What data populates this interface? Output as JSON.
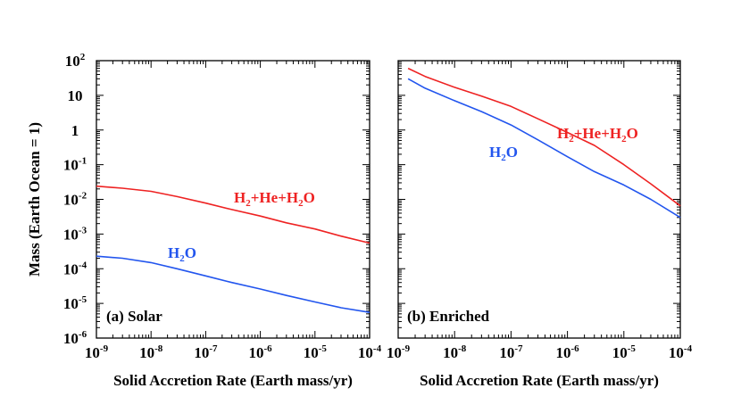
{
  "chart_data": [
    {
      "type": "line",
      "panel_label": "(a) Solar",
      "xlabel": "Solid Accretion Rate (Earth mass/yr)",
      "ylabel": "Mass (Earth Ocean = 1)",
      "xscale": "log",
      "yscale": "log",
      "xlim": [
        1e-09,
        0.0001
      ],
      "ylim": [
        1e-06,
        100
      ],
      "x_ticks": [
        {
          "base": "10",
          "exp": "-9"
        },
        {
          "base": "10",
          "exp": "-8"
        },
        {
          "base": "10",
          "exp": "-7"
        },
        {
          "base": "10",
          "exp": "-6"
        },
        {
          "base": "10",
          "exp": "-5"
        },
        {
          "base": "10",
          "exp": "-4"
        }
      ],
      "series": [
        {
          "name": "H2+He+H2O",
          "label": {
            "parts": [
              {
                "t": "H"
              },
              {
                "t": "2",
                "sub": true
              },
              {
                "t": "+He+H"
              },
              {
                "t": "2",
                "sub": true
              },
              {
                "t": "O"
              }
            ]
          },
          "color": "#ee2222",
          "x": [
            1e-09,
            3e-09,
            1e-08,
            3e-08,
            1e-07,
            3e-07,
            1e-06,
            3e-06,
            1e-05,
            3e-05,
            0.0001
          ],
          "y": [
            0.024,
            0.021,
            0.017,
            0.012,
            0.0078,
            0.0051,
            0.0033,
            0.0021,
            0.0014,
            0.00087,
            0.00055
          ]
        },
        {
          "name": "H2O",
          "label": {
            "parts": [
              {
                "t": "H"
              },
              {
                "t": "2",
                "sub": true
              },
              {
                "t": "O"
              }
            ]
          },
          "color": "#2255ee",
          "x": [
            1e-09,
            3e-09,
            1e-08,
            3e-08,
            1e-07,
            3e-07,
            1e-06,
            3e-06,
            1e-05,
            3e-05,
            0.0001
          ],
          "y": [
            0.00023,
            0.0002,
            0.00015,
            0.0001,
            6.2e-05,
            4e-05,
            2.6e-05,
            1.7e-05,
            1.1e-05,
            7.5e-06,
            5.5e-06
          ]
        }
      ]
    },
    {
      "type": "line",
      "panel_label": "(b) Enriched",
      "xlabel": "Solid Accretion Rate (Earth mass/yr)",
      "xscale": "log",
      "yscale": "log",
      "xlim": [
        1e-09,
        0.0001
      ],
      "ylim": [
        1e-06,
        100
      ],
      "x_ticks": [
        {
          "base": "10",
          "exp": "-9"
        },
        {
          "base": "10",
          "exp": "-8"
        },
        {
          "base": "10",
          "exp": "-7"
        },
        {
          "base": "10",
          "exp": "-6"
        },
        {
          "base": "10",
          "exp": "-5"
        },
        {
          "base": "10",
          "exp": "-4"
        }
      ],
      "series": [
        {
          "name": "H2+He+H2O",
          "label": {
            "parts": [
              {
                "t": "H"
              },
              {
                "t": "2",
                "sub": true
              },
              {
                "t": "+He+H"
              },
              {
                "t": "2",
                "sub": true
              },
              {
                "t": "O"
              }
            ]
          },
          "color": "#ee2222",
          "x": [
            1.5e-09,
            3e-09,
            1e-08,
            3e-08,
            1e-07,
            3e-07,
            1e-06,
            3e-06,
            1e-05,
            3e-05,
            0.0001
          ],
          "y": [
            60,
            35,
            17,
            9.5,
            4.8,
            2.1,
            0.85,
            0.36,
            0.1,
            0.028,
            0.0065
          ]
        },
        {
          "name": "H2O",
          "label": {
            "parts": [
              {
                "t": "H"
              },
              {
                "t": "2",
                "sub": true
              },
              {
                "t": "O"
              }
            ]
          },
          "color": "#2255ee",
          "x": [
            1.5e-09,
            3e-09,
            1e-08,
            3e-08,
            1e-07,
            3e-07,
            1e-06,
            3e-06,
            1e-05,
            3e-05,
            0.0001
          ],
          "y": [
            30,
            16,
            7,
            3.4,
            1.4,
            0.52,
            0.17,
            0.063,
            0.026,
            0.01,
            0.003
          ]
        }
      ]
    }
  ],
  "y_ticks": [
    {
      "base": "10",
      "exp": "2"
    },
    {
      "base": "10",
      "exp": ""
    },
    {
      "base": "1",
      "exp": ""
    },
    {
      "base": "10",
      "exp": "-1"
    },
    {
      "base": "10",
      "exp": "-2"
    },
    {
      "base": "10",
      "exp": "-3"
    },
    {
      "base": "10",
      "exp": "-4"
    },
    {
      "base": "10",
      "exp": "-5"
    },
    {
      "base": "10",
      "exp": "-6"
    }
  ]
}
